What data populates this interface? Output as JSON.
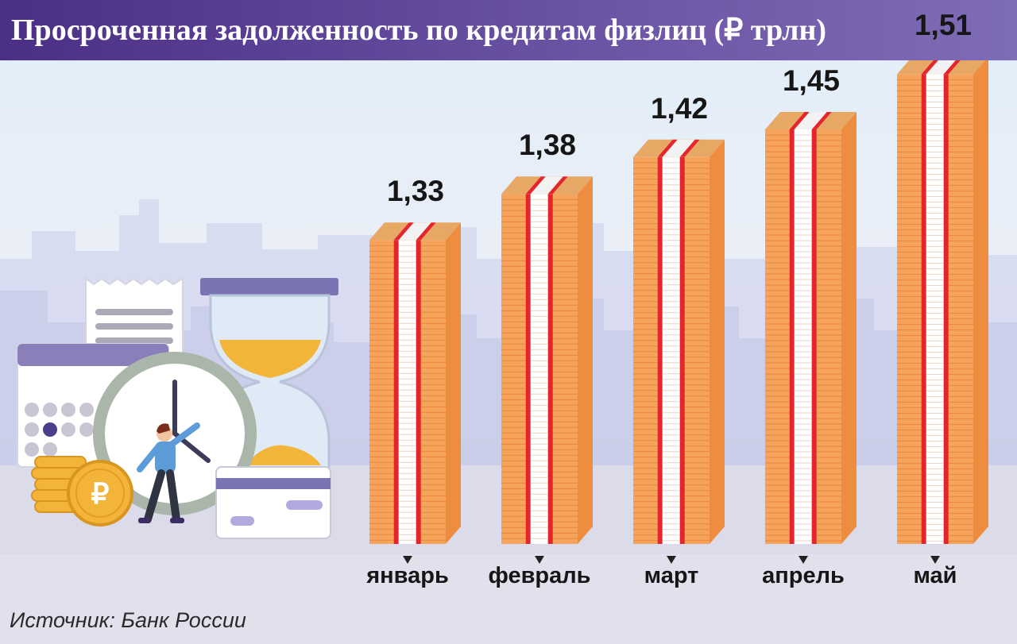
{
  "title": "Просроченная задолженность по кредитам физлиц (₽ трлн)",
  "source": "Источник: Банк России",
  "icons": [
    "calendar-icon",
    "receipt-icon",
    "hourglass-icon",
    "clock-icon",
    "ruble-coin-icon",
    "bank-card-icon",
    "person-icon"
  ],
  "colors": {
    "header": "#5a3f96",
    "banknote": "#f6a45c",
    "banknote_edge": "#ee8d3f",
    "band_red": "#e3262b",
    "band_white": "#ffffff",
    "skyline": "#c9cde8"
  },
  "chart_data": {
    "type": "bar",
    "title": "Просроченная задолженность по кредитам физлиц (₽ трлн)",
    "unit": "₽ трлн",
    "categories": [
      "январь",
      "февраль",
      "март",
      "апрель",
      "май"
    ],
    "values": [
      1.33,
      1.38,
      1.42,
      1.45,
      1.51
    ],
    "value_labels": [
      "1,33",
      "1,38",
      "1,42",
      "1,45",
      "1,51"
    ],
    "style": "stacks of banknotes",
    "grid": false,
    "legend": "none"
  }
}
